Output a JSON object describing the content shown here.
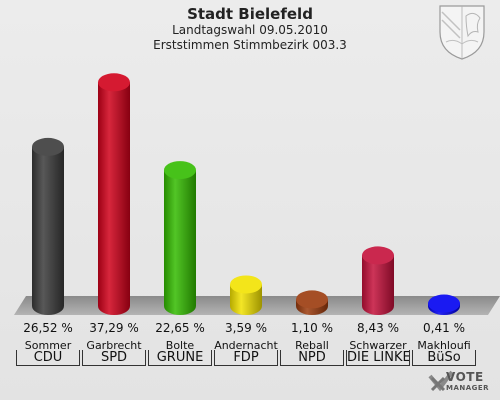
{
  "header": {
    "title": "Stadt Bielefeld",
    "subtitle1": "Landtagswahl 09.05.2010",
    "subtitle2": "Erststimmen Stimmbezirk 003.3"
  },
  "logo": {
    "line1": "VOTE",
    "line2": "MANAGER"
  },
  "chart_data": {
    "type": "bar",
    "title": "Stadt Bielefeld",
    "subtitle": "Landtagswahl 09.05.2010 / Erststimmen Stimmbezirk 003.3",
    "categories": [
      "CDU",
      "SPD",
      "GRÜNE",
      "FDP",
      "NPD",
      "DIE LINKE",
      "BüSo"
    ],
    "candidates": [
      "Sommer",
      "Garbrecht",
      "Bolte",
      "Andernacht",
      "Reball",
      "Schwarzer",
      "Makhloufi"
    ],
    "values": [
      26.52,
      37.29,
      22.65,
      3.59,
      1.1,
      8.43,
      0.41
    ],
    "value_labels": [
      "26,52 %",
      "37,29 %",
      "22,65 %",
      "3,59 %",
      "1,10 %",
      "8,43 %",
      "0,41 %"
    ],
    "colors": [
      "#3a3a3a",
      "#d0001a",
      "#33bb00",
      "#f2e200",
      "#9b3a0d",
      "#c4103a",
      "#0000f0"
    ],
    "ylim": [
      0,
      40
    ],
    "grid": false,
    "legend": "none"
  }
}
